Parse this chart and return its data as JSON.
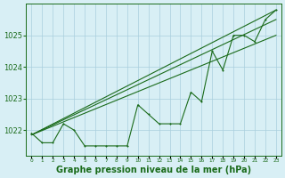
{
  "hours": [
    0,
    1,
    2,
    3,
    4,
    5,
    6,
    7,
    8,
    9,
    10,
    11,
    12,
    13,
    14,
    15,
    16,
    17,
    18,
    19,
    20,
    21,
    22,
    23
  ],
  "pressure_actual": [
    1021.9,
    1021.6,
    1021.6,
    1022.2,
    1022.0,
    1021.5,
    1021.5,
    1021.5,
    1021.5,
    1021.5,
    1022.8,
    1022.5,
    1022.2,
    1022.2,
    1022.2,
    1023.2,
    1022.9,
    1024.5,
    1023.9,
    1025.0,
    1025.0,
    1024.8,
    1025.5,
    1025.8
  ],
  "line_color": "#1a6b1a",
  "bg_color": "#d8eff5",
  "grid_color": "#aacfdd",
  "title": "Graphe pression niveau de la mer (hPa)",
  "ylabel_ticks": [
    1022,
    1023,
    1024,
    1025
  ],
  "ylim": [
    1021.2,
    1026.0
  ],
  "xlim": [
    -0.5,
    23.5
  ]
}
